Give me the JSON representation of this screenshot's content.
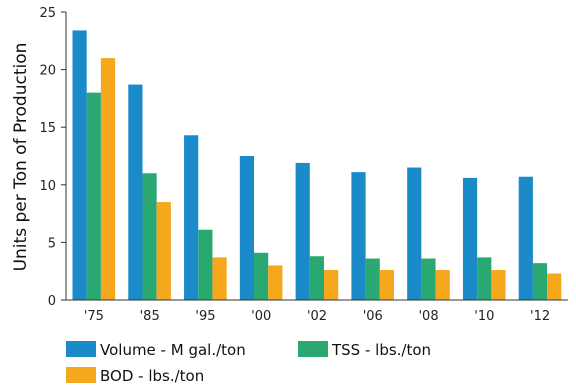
{
  "chart_data": {
    "type": "bar",
    "title": "",
    "xlabel": "",
    "ylabel": "Units per Ton of Production",
    "ylim": [
      0,
      25
    ],
    "yticks": [
      0,
      5,
      10,
      15,
      20,
      25
    ],
    "grid": false,
    "legend_position": "bottom",
    "categories": [
      "'75",
      "'85",
      "'95",
      "'00",
      "'02",
      "'06",
      "'08",
      "'10",
      "'12"
    ],
    "series": [
      {
        "name": "Volume - M gal./ton",
        "color": "#1b8ac9",
        "values": [
          23.4,
          18.7,
          14.3,
          12.5,
          11.9,
          11.1,
          11.5,
          10.6,
          10.7
        ]
      },
      {
        "name": "TSS - lbs./ton",
        "color": "#2aa872",
        "values": [
          18.0,
          11.0,
          6.1,
          4.1,
          3.8,
          3.6,
          3.6,
          3.7,
          3.2
        ]
      },
      {
        "name": "BOD - lbs./ton",
        "color": "#f5a81c",
        "values": [
          21.0,
          8.5,
          3.7,
          3.0,
          2.6,
          2.6,
          2.6,
          2.6,
          2.3
        ]
      }
    ]
  }
}
